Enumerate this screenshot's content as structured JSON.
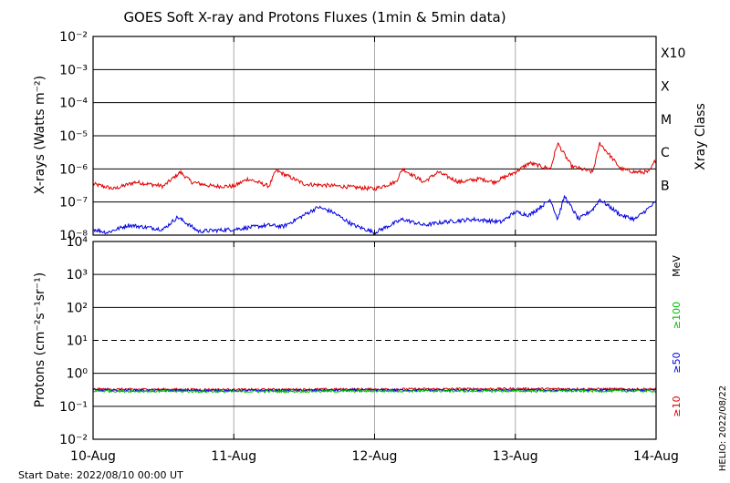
{
  "chart_data": {
    "title": "GOES Soft X-ray and Protons Fluxes   (1min & 5min data)",
    "footer_start": "Start Date: 2022/08/10 00:00 UT",
    "footer_credit": "HELIO: 2022/08/22",
    "x_tick_labels": [
      "10-Aug",
      "11-Aug",
      "12-Aug",
      "13-Aug",
      "14-Aug"
    ],
    "x_range_days": [
      0,
      4
    ],
    "panels": [
      {
        "type": "line",
        "ylabel": "X-rays (Watts m⁻²)",
        "yscale": "log",
        "ylim": [
          1e-08,
          0.01
        ],
        "y_tick_labels": [
          "10⁻⁸",
          "10⁻⁷",
          "10⁻⁶",
          "10⁻⁵",
          "10⁻⁴",
          "10⁻³",
          "10⁻²"
        ],
        "grid": "horizontal lines at each decade",
        "right_axis_label": "Xray Class",
        "class_labels": [
          "B",
          "C",
          "M",
          "X",
          "X10"
        ],
        "series": [
          {
            "color": "#e00000",
            "x": [
              0.0,
              0.15,
              0.3,
              0.5,
              0.62,
              0.7,
              0.85,
              1.0,
              1.1,
              1.25,
              1.3,
              1.5,
              1.75,
              2.0,
              2.15,
              2.2,
              2.35,
              2.45,
              2.6,
              2.75,
              2.85,
              3.0,
              3.1,
              3.25,
              3.3,
              3.4,
              3.55,
              3.6,
              3.75,
              3.85,
              3.95,
              4.0
            ],
            "values": [
              3.5e-07,
              2.5e-07,
              4e-07,
              3e-07,
              8e-07,
              4e-07,
              3e-07,
              3e-07,
              5e-07,
              3e-07,
              9e-07,
              3.5e-07,
              3e-07,
              2.5e-07,
              4e-07,
              1e-06,
              4e-07,
              8e-07,
              4e-07,
              5e-07,
              4e-07,
              8e-07,
              1.5e-06,
              1e-06,
              6e-06,
              1.2e-06,
              8e-07,
              6e-06,
              1e-06,
              8e-07,
              8e-07,
              2e-06
            ]
          },
          {
            "color": "#0000e0",
            "x": [
              0.0,
              0.1,
              0.25,
              0.5,
              0.6,
              0.75,
              1.0,
              1.25,
              1.35,
              1.6,
              1.7,
              1.85,
              2.0,
              2.2,
              2.35,
              2.5,
              2.7,
              2.9,
              3.0,
              3.1,
              3.25,
              3.3,
              3.35,
              3.45,
              3.55,
              3.6,
              3.75,
              3.85,
              4.0
            ],
            "values": [
              1.5e-08,
              1.2e-08,
              2e-08,
              1.5e-08,
              3.5e-08,
              1.3e-08,
              1.5e-08,
              2e-08,
              1.8e-08,
              7e-08,
              5e-08,
              2e-08,
              1.2e-08,
              3e-08,
              2e-08,
              2.5e-08,
              3e-08,
              2.5e-08,
              5e-08,
              4e-08,
              1.2e-07,
              3e-08,
              1.5e-07,
              3e-08,
              6e-08,
              1.2e-07,
              4e-08,
              3e-08,
              1e-07
            ]
          }
        ]
      },
      {
        "type": "line",
        "ylabel": "Protons (cm⁻²s⁻¹sr⁻¹)",
        "yscale": "log",
        "ylim": [
          0.01,
          10000
        ],
        "y_tick_labels": [
          "10⁻²",
          "10⁻¹",
          "10⁰",
          "10¹",
          "10²",
          "10³",
          "10⁴"
        ],
        "grid": "horizontal lines at each decade, dashed at 10¹",
        "right_axis_label": "MeV",
        "series": [
          {
            "name": "≥10",
            "color": "#e00000",
            "x": [
              0,
              1,
              2,
              3,
              4
            ],
            "values": [
              0.33,
              0.32,
              0.33,
              0.34,
              0.33
            ]
          },
          {
            "name": "≥50",
            "color": "#0000e0",
            "x": [
              0,
              1,
              2,
              3,
              4
            ],
            "values": [
              0.31,
              0.3,
              0.31,
              0.31,
              0.31
            ]
          },
          {
            "name": "≥100",
            "color": "#00c000",
            "x": [
              0,
              1,
              2,
              3,
              4
            ],
            "values": [
              0.29,
              0.28,
              0.29,
              0.29,
              0.29
            ]
          }
        ]
      }
    ]
  }
}
